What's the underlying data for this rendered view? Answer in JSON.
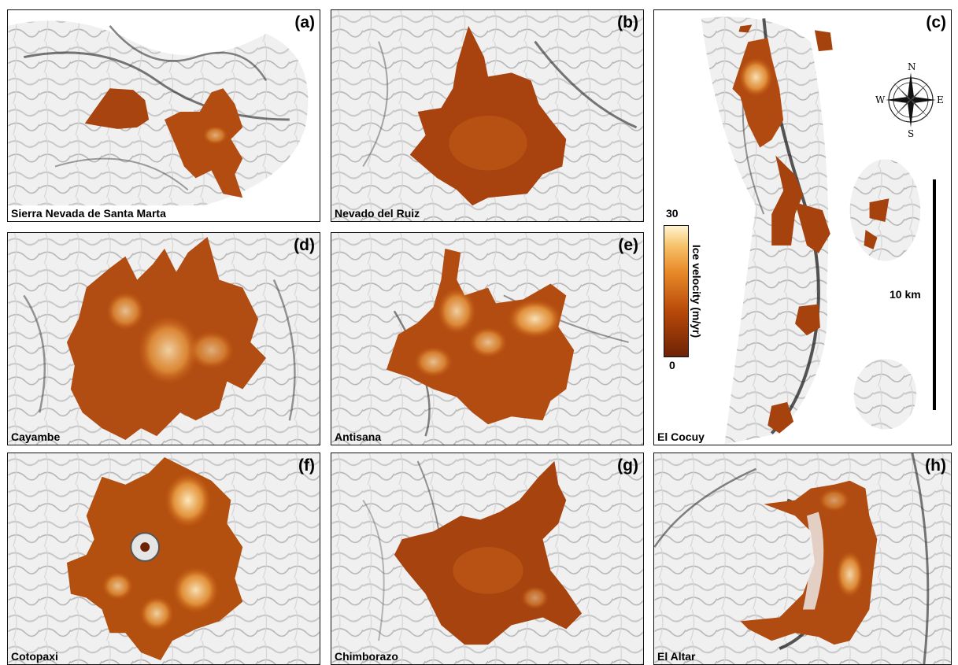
{
  "panels": [
    {
      "tag": "(a)",
      "name": "Sierra Nevada de Santa Marta"
    },
    {
      "tag": "(b)",
      "name": "Nevado del Ruiz"
    },
    {
      "tag": "(c)",
      "name": "El Cocuy"
    },
    {
      "tag": "(d)",
      "name": "Cayambe"
    },
    {
      "tag": "(e)",
      "name": "Antisana"
    },
    {
      "tag": "(f)",
      "name": "Cotopaxi"
    },
    {
      "tag": "(g)",
      "name": "Chimborazo"
    },
    {
      "tag": "(h)",
      "name": "El Altar"
    }
  ],
  "colorbar": {
    "label": "Ice velocity (m/yr)",
    "max": "30",
    "min": "0",
    "colors": [
      "#6e2205",
      "#b84a0a",
      "#e88a2a",
      "#f6c36a",
      "#fff4d2"
    ]
  },
  "scalebar": {
    "label": "10 km"
  },
  "compass": {
    "n": "N",
    "s": "S",
    "e": "E",
    "w": "W"
  }
}
